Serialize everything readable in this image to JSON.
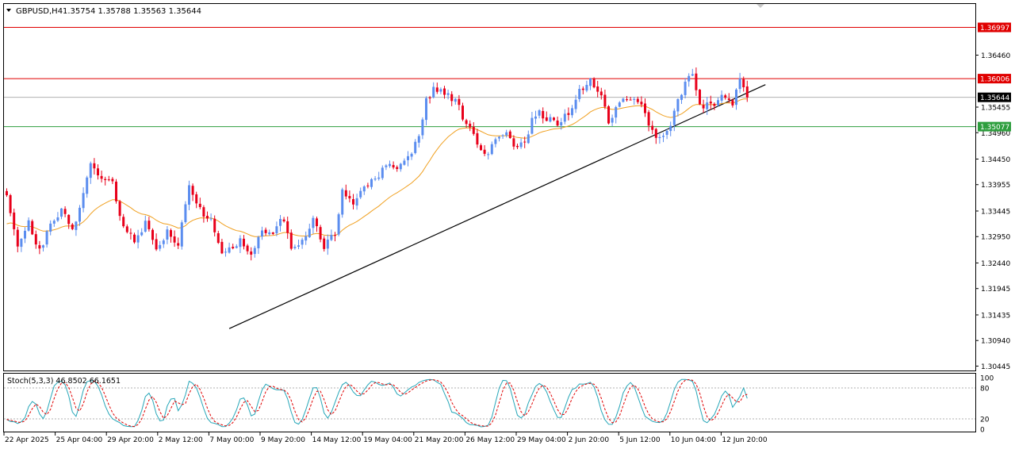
{
  "header": {
    "symbol": "GBPUSD,H4",
    "ohlc": "1.35754 1.35788 1.35563 1.35644",
    "dropdown_icon": "triangle-down-icon",
    "scroll_marker_icon": "triangle-down-icon"
  },
  "indicator": {
    "label": "Stoch(5,3,3) 46.8502 66.1651",
    "levels": [
      80,
      20
    ],
    "axis_labels": [
      "100",
      "80",
      "20",
      "0"
    ]
  },
  "colors": {
    "bull": "#5B8DEF",
    "bear": "#E8001A",
    "ma": "#F0A020",
    "trendline": "#000000",
    "resistance_line": "#E00000",
    "support_line": "#2E9E3E",
    "current_line": "#B0B0B0",
    "stoch_main": "#26A6B8",
    "stoch_signal": "#E00000"
  },
  "chart_data": {
    "type": "candlestick",
    "symbol": "GBPUSD",
    "timeframe": "H4",
    "price_axis_labels": [
      "1.36460",
      "1.35455",
      "1.34960",
      "1.34450",
      "1.33955",
      "1.33445",
      "1.32950",
      "1.32440",
      "1.31945",
      "1.31435",
      "1.30940",
      "1.30445"
    ],
    "price_axis_values": [
      1.3646,
      1.35455,
      1.3496,
      1.3445,
      1.33955,
      1.33445,
      1.3295,
      1.3244,
      1.31945,
      1.31435,
      1.3094,
      1.30445
    ],
    "time_axis_labels": [
      "22 Apr 2025",
      "25 Apr 04:00",
      "29 Apr 20:00",
      "2 May 12:00",
      "7 May 00:00",
      "9 May 20:00",
      "14 May 12:00",
      "19 May 04:00",
      "21 May 20:00",
      "26 May 12:00",
      "29 May 04:00",
      "2 Jun 20:00",
      "5 Jun 12:00",
      "10 Jun 04:00",
      "12 Jun 20:00"
    ],
    "ylim": [
      1.3036,
      1.3745
    ],
    "horizontal_lines": [
      {
        "label": "1.36997",
        "value": 1.36997,
        "kind": "resistance"
      },
      {
        "label": "1.36006",
        "value": 1.36006,
        "kind": "resistance"
      },
      {
        "label": "1.35644",
        "value": 1.35644,
        "kind": "current"
      },
      {
        "label": "1.35077",
        "value": 1.35077,
        "kind": "support"
      }
    ],
    "trendline": {
      "from": {
        "bar": 61,
        "price": 1.3117
      },
      "to": {
        "bar": 208,
        "price": 1.3589
      }
    },
    "anchors": [
      {
        "bar": 0,
        "price": 1.3375
      },
      {
        "bar": 3,
        "price": 1.327
      },
      {
        "bar": 6,
        "price": 1.3325
      },
      {
        "bar": 9,
        "price": 1.3265
      },
      {
        "bar": 12,
        "price": 1.3315
      },
      {
        "bar": 15,
        "price": 1.335
      },
      {
        "bar": 18,
        "price": 1.3305
      },
      {
        "bar": 21,
        "price": 1.338
      },
      {
        "bar": 23,
        "price": 1.343
      },
      {
        "bar": 26,
        "price": 1.3405
      },
      {
        "bar": 29,
        "price": 1.3395
      },
      {
        "bar": 32,
        "price": 1.331
      },
      {
        "bar": 35,
        "price": 1.3285
      },
      {
        "bar": 38,
        "price": 1.332
      },
      {
        "bar": 41,
        "price": 1.3275
      },
      {
        "bar": 44,
        "price": 1.3305
      },
      {
        "bar": 47,
        "price": 1.3275
      },
      {
        "bar": 50,
        "price": 1.3395
      },
      {
        "bar": 53,
        "price": 1.3345
      },
      {
        "bar": 56,
        "price": 1.3325
      },
      {
        "bar": 59,
        "price": 1.326
      },
      {
        "bar": 62,
        "price": 1.327
      },
      {
        "bar": 64,
        "price": 1.3295
      },
      {
        "bar": 67,
        "price": 1.3255
      },
      {
        "bar": 70,
        "price": 1.331
      },
      {
        "bar": 73,
        "price": 1.3305
      },
      {
        "bar": 76,
        "price": 1.333
      },
      {
        "bar": 78,
        "price": 1.3275
      },
      {
        "bar": 81,
        "price": 1.3285
      },
      {
        "bar": 84,
        "price": 1.3325
      },
      {
        "bar": 87,
        "price": 1.3275
      },
      {
        "bar": 90,
        "price": 1.3305
      },
      {
        "bar": 92,
        "price": 1.3385
      },
      {
        "bar": 95,
        "price": 1.3365
      },
      {
        "bar": 98,
        "price": 1.3395
      },
      {
        "bar": 101,
        "price": 1.3405
      },
      {
        "bar": 104,
        "price": 1.3435
      },
      {
        "bar": 107,
        "price": 1.3425
      },
      {
        "bar": 110,
        "price": 1.3445
      },
      {
        "bar": 113,
        "price": 1.349
      },
      {
        "bar": 115,
        "price": 1.3555
      },
      {
        "bar": 117,
        "price": 1.358
      },
      {
        "bar": 120,
        "price": 1.3575
      },
      {
        "bar": 123,
        "price": 1.356
      },
      {
        "bar": 126,
        "price": 1.351
      },
      {
        "bar": 129,
        "price": 1.348
      },
      {
        "bar": 132,
        "price": 1.345
      },
      {
        "bar": 134,
        "price": 1.3485
      },
      {
        "bar": 137,
        "price": 1.349
      },
      {
        "bar": 140,
        "price": 1.347
      },
      {
        "bar": 142,
        "price": 1.348
      },
      {
        "bar": 145,
        "price": 1.3535
      },
      {
        "bar": 148,
        "price": 1.3525
      },
      {
        "bar": 151,
        "price": 1.3515
      },
      {
        "bar": 154,
        "price": 1.353
      },
      {
        "bar": 157,
        "price": 1.3575
      },
      {
        "bar": 160,
        "price": 1.3598
      },
      {
        "bar": 163,
        "price": 1.3565
      },
      {
        "bar": 165,
        "price": 1.352
      },
      {
        "bar": 168,
        "price": 1.3555
      },
      {
        "bar": 171,
        "price": 1.3565
      },
      {
        "bar": 174,
        "price": 1.3555
      },
      {
        "bar": 176,
        "price": 1.3505
      },
      {
        "bar": 179,
        "price": 1.348
      },
      {
        "bar": 182,
        "price": 1.3515
      },
      {
        "bar": 185,
        "price": 1.3575
      },
      {
        "bar": 188,
        "price": 1.3612
      },
      {
        "bar": 190,
        "price": 1.355
      },
      {
        "bar": 193,
        "price": 1.3545
      },
      {
        "bar": 196,
        "price": 1.3575
      },
      {
        "bar": 199,
        "price": 1.3555
      },
      {
        "bar": 201,
        "price": 1.3605
      },
      {
        "bar": 203,
        "price": 1.3564
      }
    ]
  }
}
